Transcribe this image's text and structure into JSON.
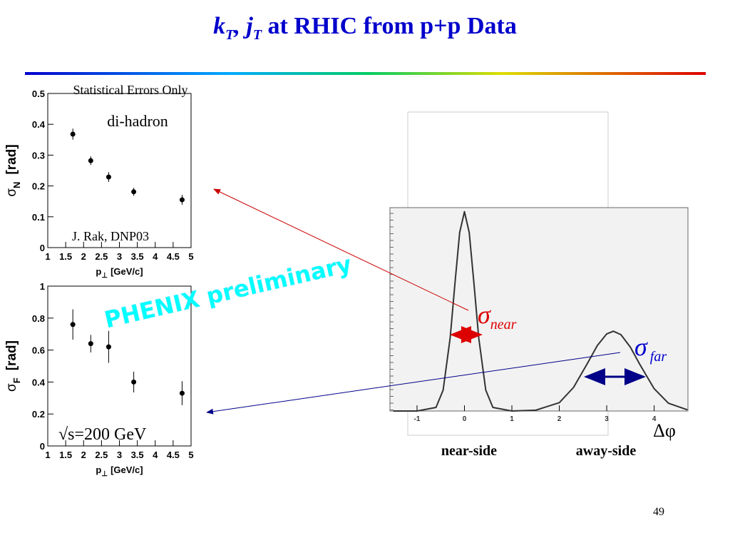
{
  "slide": {
    "title_parts": [
      "k",
      "T",
      ", j",
      "T",
      " at RHIC from p+p Data"
    ],
    "page_number": "49"
  },
  "chart_data": [
    {
      "type": "scatter",
      "color": "#000000",
      "y_label": {
        "symbol": "σ",
        "sub": "N",
        "unit": "[rad]"
      },
      "x_label": {
        "symbol": "p",
        "sub": "⊥",
        "unit": "[GeV/c]"
      },
      "x": [
        1.7,
        2.2,
        2.7,
        3.4,
        4.75
      ],
      "values": [
        0.368,
        0.282,
        0.229,
        0.181,
        0.155
      ],
      "errors": [
        0.018,
        0.014,
        0.016,
        0.013,
        0.016
      ],
      "xlim": [
        1,
        5
      ],
      "ylim": [
        0,
        0.5
      ],
      "xticks": [
        1,
        1.5,
        2,
        2.5,
        3,
        3.5,
        4,
        4.5,
        5
      ],
      "yticks": [
        0,
        0.1,
        0.2,
        0.3,
        0.4,
        0.5
      ],
      "annotations": {
        "errors_note": "Statistical Errors Only",
        "method": "di-hadron",
        "source": "J. Rak, DNP03"
      }
    },
    {
      "type": "scatter",
      "color": "#000000",
      "y_label": {
        "symbol": "σ",
        "sub": "F",
        "unit": "[rad]"
      },
      "x_label": {
        "symbol": "p",
        "sub": "⊥",
        "unit": "[GeV/c]"
      },
      "x": [
        1.7,
        2.2,
        2.7,
        3.4,
        4.75
      ],
      "values": [
        0.76,
        0.64,
        0.62,
        0.4,
        0.33
      ],
      "errors": [
        0.095,
        0.055,
        0.1,
        0.065,
        0.075
      ],
      "xlim": [
        1,
        5
      ],
      "ylim": [
        0,
        1
      ],
      "xticks": [
        1,
        1.5,
        2,
        2.5,
        3,
        3.5,
        4,
        4.5,
        5
      ],
      "yticks": [
        0,
        0.2,
        0.4,
        0.6,
        0.8,
        1
      ],
      "annotations": {
        "sqrt": "√",
        "energy": "s=200 GeV"
      }
    },
    {
      "type": "line",
      "color": "#333333",
      "x_label": "Δφ",
      "x": [
        -1.5,
        -1.0,
        -0.6,
        -0.45,
        -0.3,
        -0.2,
        -0.1,
        0,
        0.1,
        0.2,
        0.3,
        0.45,
        0.6,
        1.0,
        1.5,
        2.0,
        2.3,
        2.6,
        2.8,
        3.0,
        3.14,
        3.3,
        3.5,
        3.7,
        4.0,
        4.3,
        4.7
      ],
      "values": [
        0,
        0,
        0.018,
        0.105,
        0.368,
        0.641,
        0.895,
        1,
        0.895,
        0.641,
        0.368,
        0.105,
        0.018,
        0,
        0.004,
        0.042,
        0.118,
        0.242,
        0.328,
        0.387,
        0.4,
        0.383,
        0.32,
        0.233,
        0.112,
        0.039,
        0.006
      ],
      "xlim": [
        -1.5708,
        4.7124
      ],
      "ylim": [
        0,
        1.02
      ],
      "xticks": [
        -1,
        0,
        1,
        2,
        3,
        4
      ],
      "annotations": {
        "phenix": "PHENIX preliminary",
        "sigma_near": "σ",
        "near_sub": "near",
        "sigma_far": "σ",
        "far_sub": "far",
        "near_side": "near-side",
        "away_side": "away-side"
      }
    }
  ]
}
